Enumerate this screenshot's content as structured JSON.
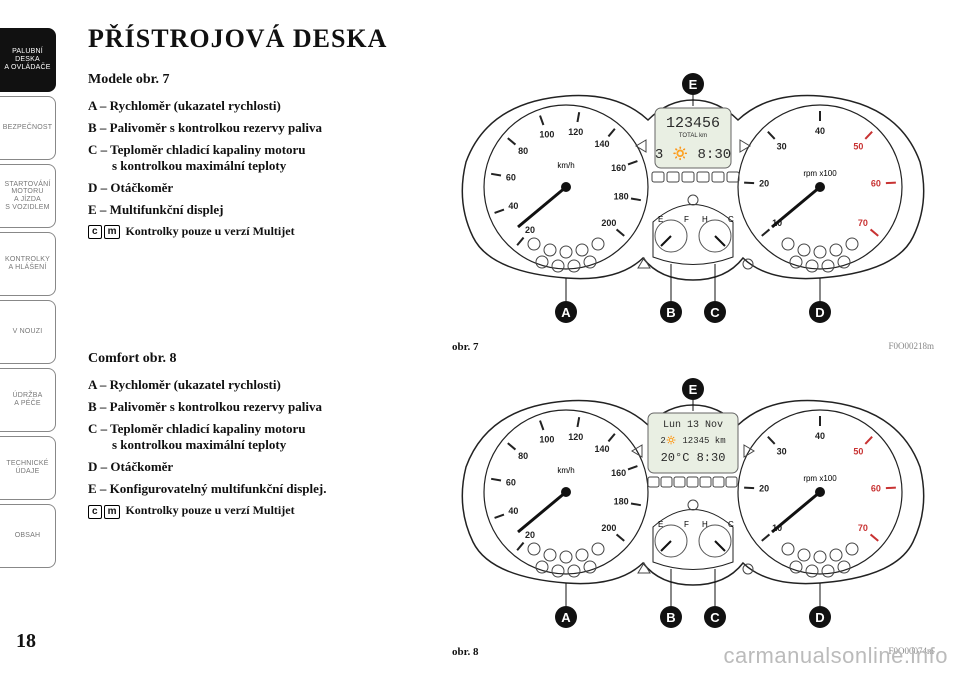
{
  "page_number": "18",
  "title": "PŘÍSTROJOVÁ DESKA",
  "sidebar": {
    "tabs": [
      {
        "label": "PALUBNÍ\nDESKA\nA OVLÁDAČE",
        "active": true
      },
      {
        "label": "BEZPEČNOST",
        "active": false
      },
      {
        "label": "STARTOVÁNÍ\nMOTORU\nA JÍZDA\nS VOZIDLEM",
        "active": false
      },
      {
        "label": "KONTROLKY\nA HLÁŠENÍ",
        "active": false
      },
      {
        "label": "V NOUZI",
        "active": false
      },
      {
        "label": "ÚDRŽBA\nA PÉČE",
        "active": false
      },
      {
        "label": "TECHNICKÉ\nÚDAJE",
        "active": false
      },
      {
        "label": "OBSAH",
        "active": false
      }
    ]
  },
  "sections": [
    {
      "heading": "Modele obr. 7",
      "items": [
        {
          "text": "A – Rychloměr (ukazatel rychlosti)"
        },
        {
          "text": "B – Palivoměr s kontrolkou rezervy paliva"
        },
        {
          "text": "C – Teploměr chladicí kapaliny motoru",
          "sub": "s kontrolkou maximální teploty"
        },
        {
          "text": "D – Otáčkoměr"
        },
        {
          "text": "E – Multifunkční displej"
        }
      ],
      "note_icons": "cm “S”",
      "note": "Kontrolky pouze u verzí Multijet"
    },
    {
      "heading": "Comfort obr. 8",
      "items": [
        {
          "text": "A – Rychloměr (ukazatel rychlosti)"
        },
        {
          "text": "B – Palivoměr s kontrolkou rezervy paliva"
        },
        {
          "text": "C – Teploměr chladicí kapaliny motoru",
          "sub": "s kontrolkou maximální teploty"
        },
        {
          "text": "D – Otáčkoměr"
        },
        {
          "text": "E – Konfigurovatelný multifunkční displej."
        }
      ],
      "note_icons": "cm “S”",
      "note": "Kontrolky pouze u verzí Multijet"
    }
  ],
  "figures": [
    {
      "label": "obr. 7",
      "code": "F0O00218m",
      "display_text": "123456",
      "display_sub1": "TOTAL   km",
      "display_sub2": "3 🔅   8:30",
      "callouts": [
        "A",
        "B",
        "C",
        "D",
        "E"
      ]
    },
    {
      "label": "obr. 8",
      "code": "F0O00074m",
      "display_line1": "Lun 13 Nov",
      "display_line2": "2🔅     12345 km",
      "display_line3": "20°C   8:30",
      "callouts": [
        "A",
        "B",
        "C",
        "D",
        "E"
      ]
    }
  ],
  "gauges": {
    "speedo_ticks": [
      "20",
      "40",
      "60",
      "80",
      "100",
      "120",
      "140",
      "160",
      "180",
      "200"
    ],
    "speedo_unit": "km/h",
    "tacho_ticks": [
      "10",
      "20",
      "30",
      "40",
      "50",
      "60",
      "70"
    ],
    "tacho_unit": "rpm x100",
    "fuel_left": "E",
    "fuel_right": "F",
    "temp_left": "H",
    "temp_right": "C"
  },
  "colors": {
    "page_bg": "#ffffff",
    "text": "#111111",
    "tab_border": "#888888",
    "tab_inactive_text": "#777777",
    "tab_active_bg": "#111111",
    "tab_active_text": "#ffffff",
    "fig_code": "#888888",
    "watermark": "#bbbbbb",
    "cluster_outline": "#222222",
    "cluster_fill": "#ffffff",
    "dial_fill": "#ffffff",
    "tick": "#222222",
    "needle": "#111111",
    "redzone": "#c83232",
    "label_circle_fill": "#111111",
    "label_circle_text": "#ffffff",
    "lcd_bg": "#e9efe3",
    "lcd_text": "#2a2a2a",
    "icon_stroke": "#444444"
  },
  "watermark": "carmanualsonline.info"
}
